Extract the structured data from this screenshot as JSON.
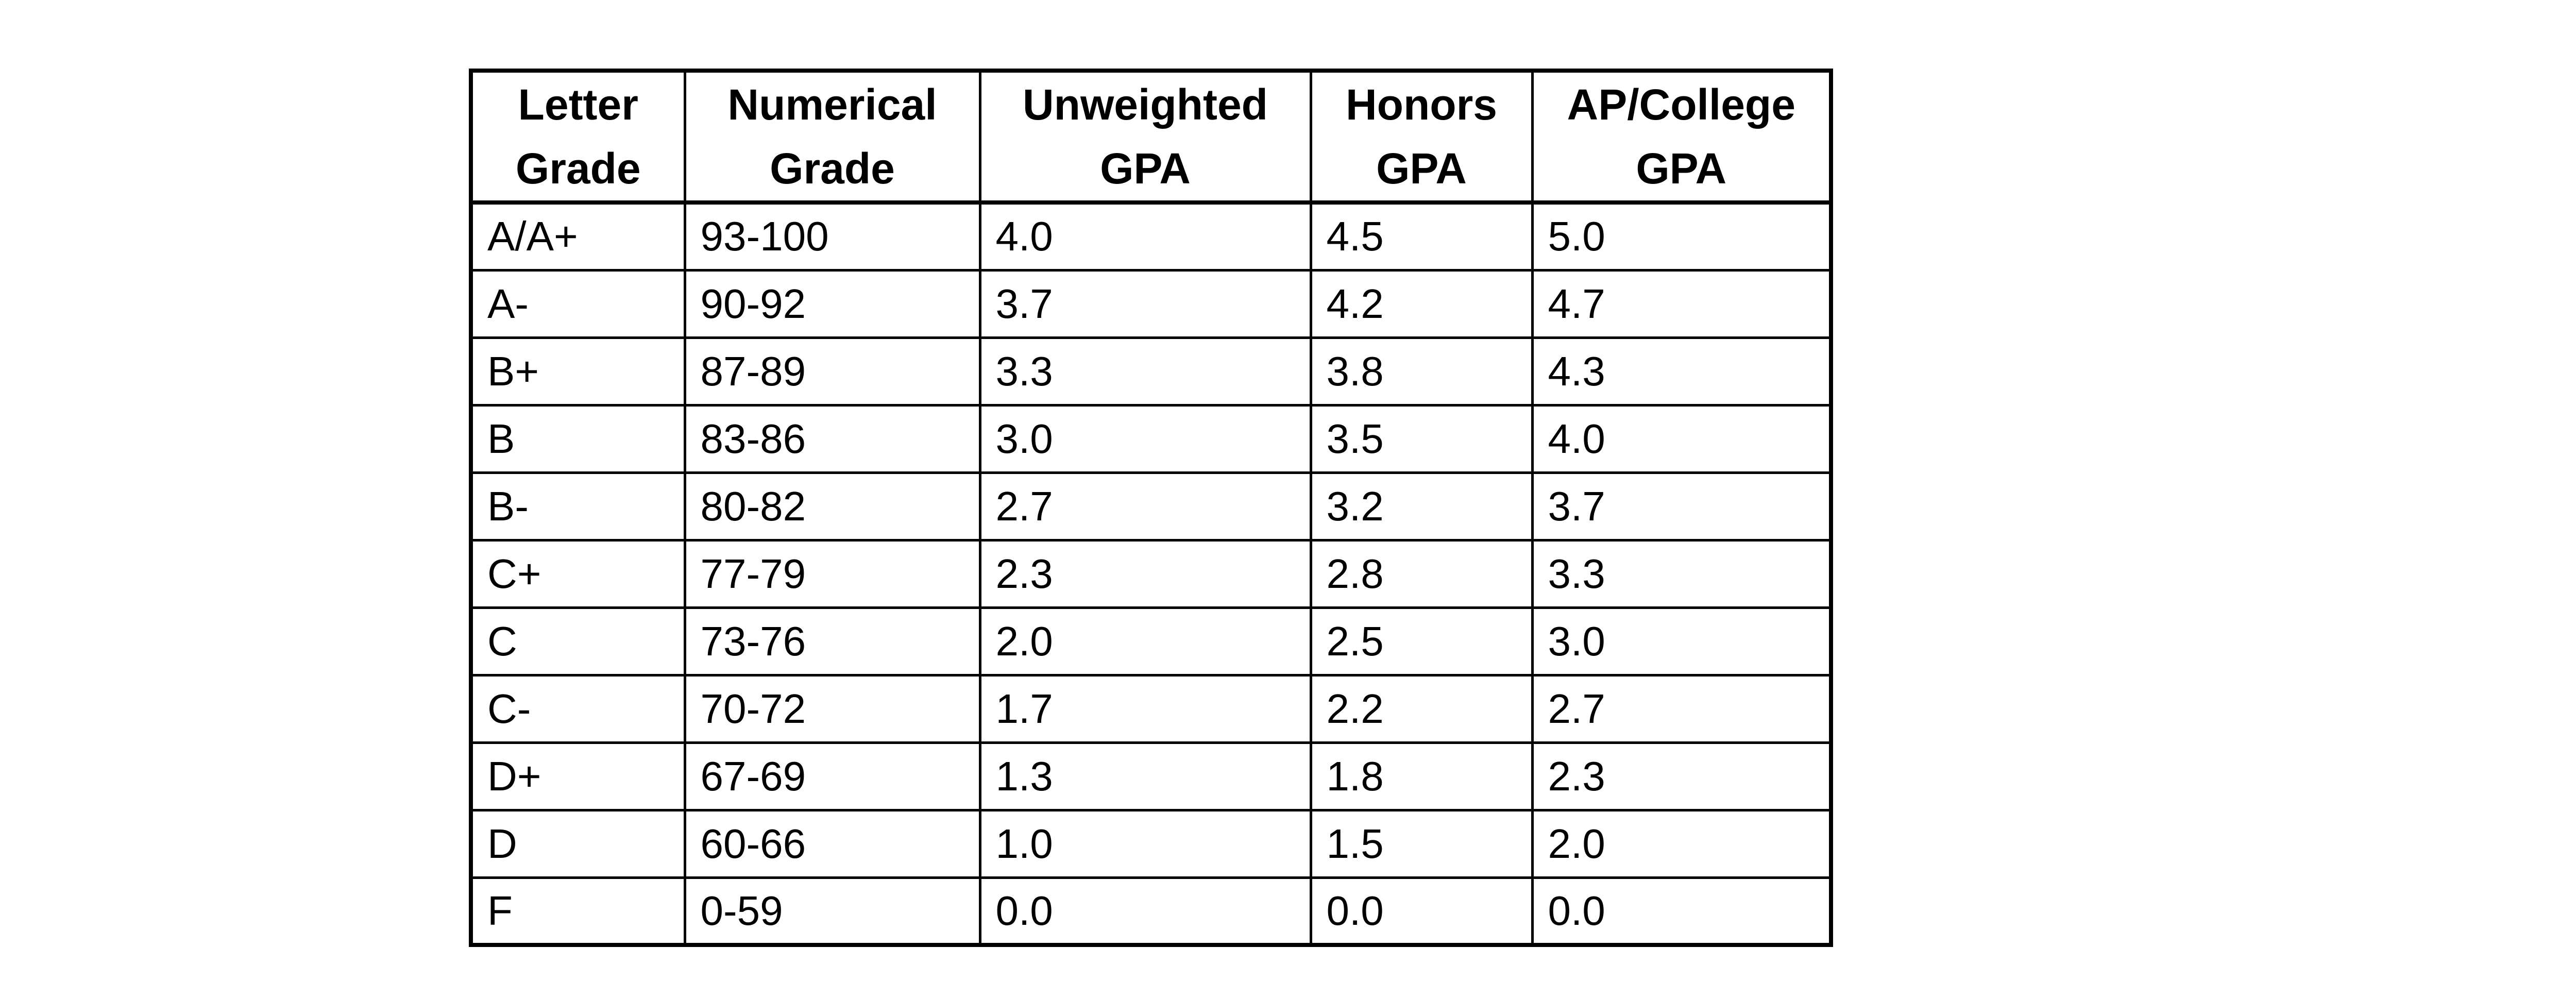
{
  "page": {
    "background": "#ffffff"
  },
  "table": {
    "colors": {
      "border": "#000000",
      "text": "#000000",
      "background": "#ffffff"
    },
    "headers": [
      {
        "line1": "Letter",
        "line2": "Grade"
      },
      {
        "line1": "Numerical",
        "line2": "Grade"
      },
      {
        "line1": "Unweighted",
        "line2": "GPA"
      },
      {
        "line1": "Honors",
        "line2": "GPA"
      },
      {
        "line1": "AP/College",
        "line2": "GPA"
      }
    ],
    "rows": [
      [
        "A/A+",
        "93-100",
        "4.0",
        "4.5",
        "5.0"
      ],
      [
        "A-",
        "90-92",
        "3.7",
        "4.2",
        "4.7"
      ],
      [
        "B+",
        "87-89",
        "3.3",
        "3.8",
        "4.3"
      ],
      [
        "B",
        "83-86",
        "3.0",
        "3.5",
        "4.0"
      ],
      [
        "B-",
        "80-82",
        "2.7",
        "3.2",
        "3.7"
      ],
      [
        "C+",
        "77-79",
        "2.3",
        "2.8",
        "3.3"
      ],
      [
        "C",
        "73-76",
        "2.0",
        "2.5",
        "3.0"
      ],
      [
        "C-",
        "70-72",
        "1.7",
        "2.2",
        "2.7"
      ],
      [
        "D+",
        "67-69",
        "1.3",
        "1.8",
        "2.3"
      ],
      [
        "D",
        "60-66",
        "1.0",
        "1.5",
        "2.0"
      ],
      [
        "F",
        "0-59",
        "0.0",
        "0.0",
        "0.0"
      ]
    ]
  }
}
